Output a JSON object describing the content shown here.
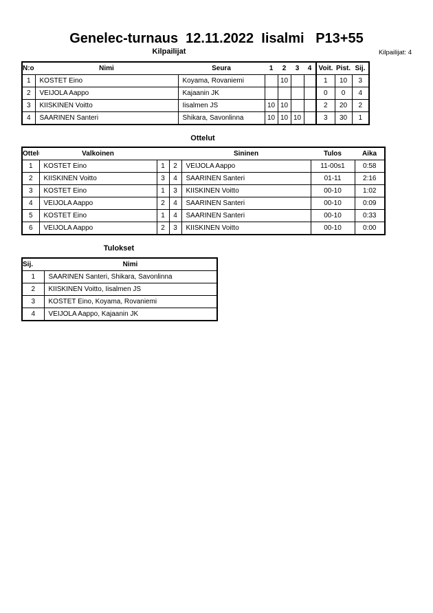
{
  "title": "Genelec-turnaus  12.11.2022  Iisalmi   P13+55",
  "competitors": {
    "heading": "Kilpailijat",
    "count_label": "Kilpailijat: 4",
    "columns": [
      "N:o",
      "Nimi",
      "Seura",
      "1",
      "2",
      "3",
      "4",
      "Voit.",
      "Pist.",
      "Sij."
    ],
    "rows": [
      [
        "1",
        "KOSTET Eino",
        "Koyama, Rovaniemi",
        "",
        "10",
        "",
        "",
        "1",
        "10",
        "3"
      ],
      [
        "2",
        "VEIJOLA Aappo",
        "Kajaanin JK",
        "",
        "",
        "",
        "",
        "0",
        "0",
        "4"
      ],
      [
        "3",
        "KIISKINEN Voitto",
        "Iisalmen JS",
        "10",
        "10",
        "",
        "",
        "2",
        "20",
        "2"
      ],
      [
        "4",
        "SAARINEN Santeri",
        "Shikara, Savonlinna",
        "10",
        "10",
        "10",
        "",
        "3",
        "30",
        "1"
      ]
    ]
  },
  "matches": {
    "heading": "Ottelut",
    "columns": [
      "Ottelu",
      "Valkoinen",
      "",
      "",
      "Sininen",
      "Tulos",
      "Aika"
    ],
    "rows": [
      [
        "1",
        "KOSTET Eino",
        "1",
        "2",
        "VEIJOLA Aappo",
        "11-00s1",
        "0:58"
      ],
      [
        "2",
        "KIISKINEN Voitto",
        "3",
        "4",
        "SAARINEN Santeri",
        "01-11",
        "2:16"
      ],
      [
        "3",
        "KOSTET Eino",
        "1",
        "3",
        "KIISKINEN Voitto",
        "00-10",
        "1:02"
      ],
      [
        "4",
        "VEIJOLA Aappo",
        "2",
        "4",
        "SAARINEN Santeri",
        "00-10",
        "0:09"
      ],
      [
        "5",
        "KOSTET Eino",
        "1",
        "4",
        "SAARINEN Santeri",
        "00-10",
        "0:33"
      ],
      [
        "6",
        "VEIJOLA Aappo",
        "2",
        "3",
        "KIISKINEN Voitto",
        "00-10",
        "0:00"
      ]
    ]
  },
  "results": {
    "heading": "Tulokset",
    "columns": [
      "Sij.",
      "Nimi"
    ],
    "rows": [
      [
        "1",
        "SAARINEN Santeri, Shikara, Savonlinna"
      ],
      [
        "2",
        "KIISKINEN Voitto, Iisalmen JS"
      ],
      [
        "3",
        "KOSTET Eino, Koyama, Rovaniemi"
      ],
      [
        "4",
        "VEIJOLA Aappo, Kajaanin JK"
      ]
    ]
  }
}
